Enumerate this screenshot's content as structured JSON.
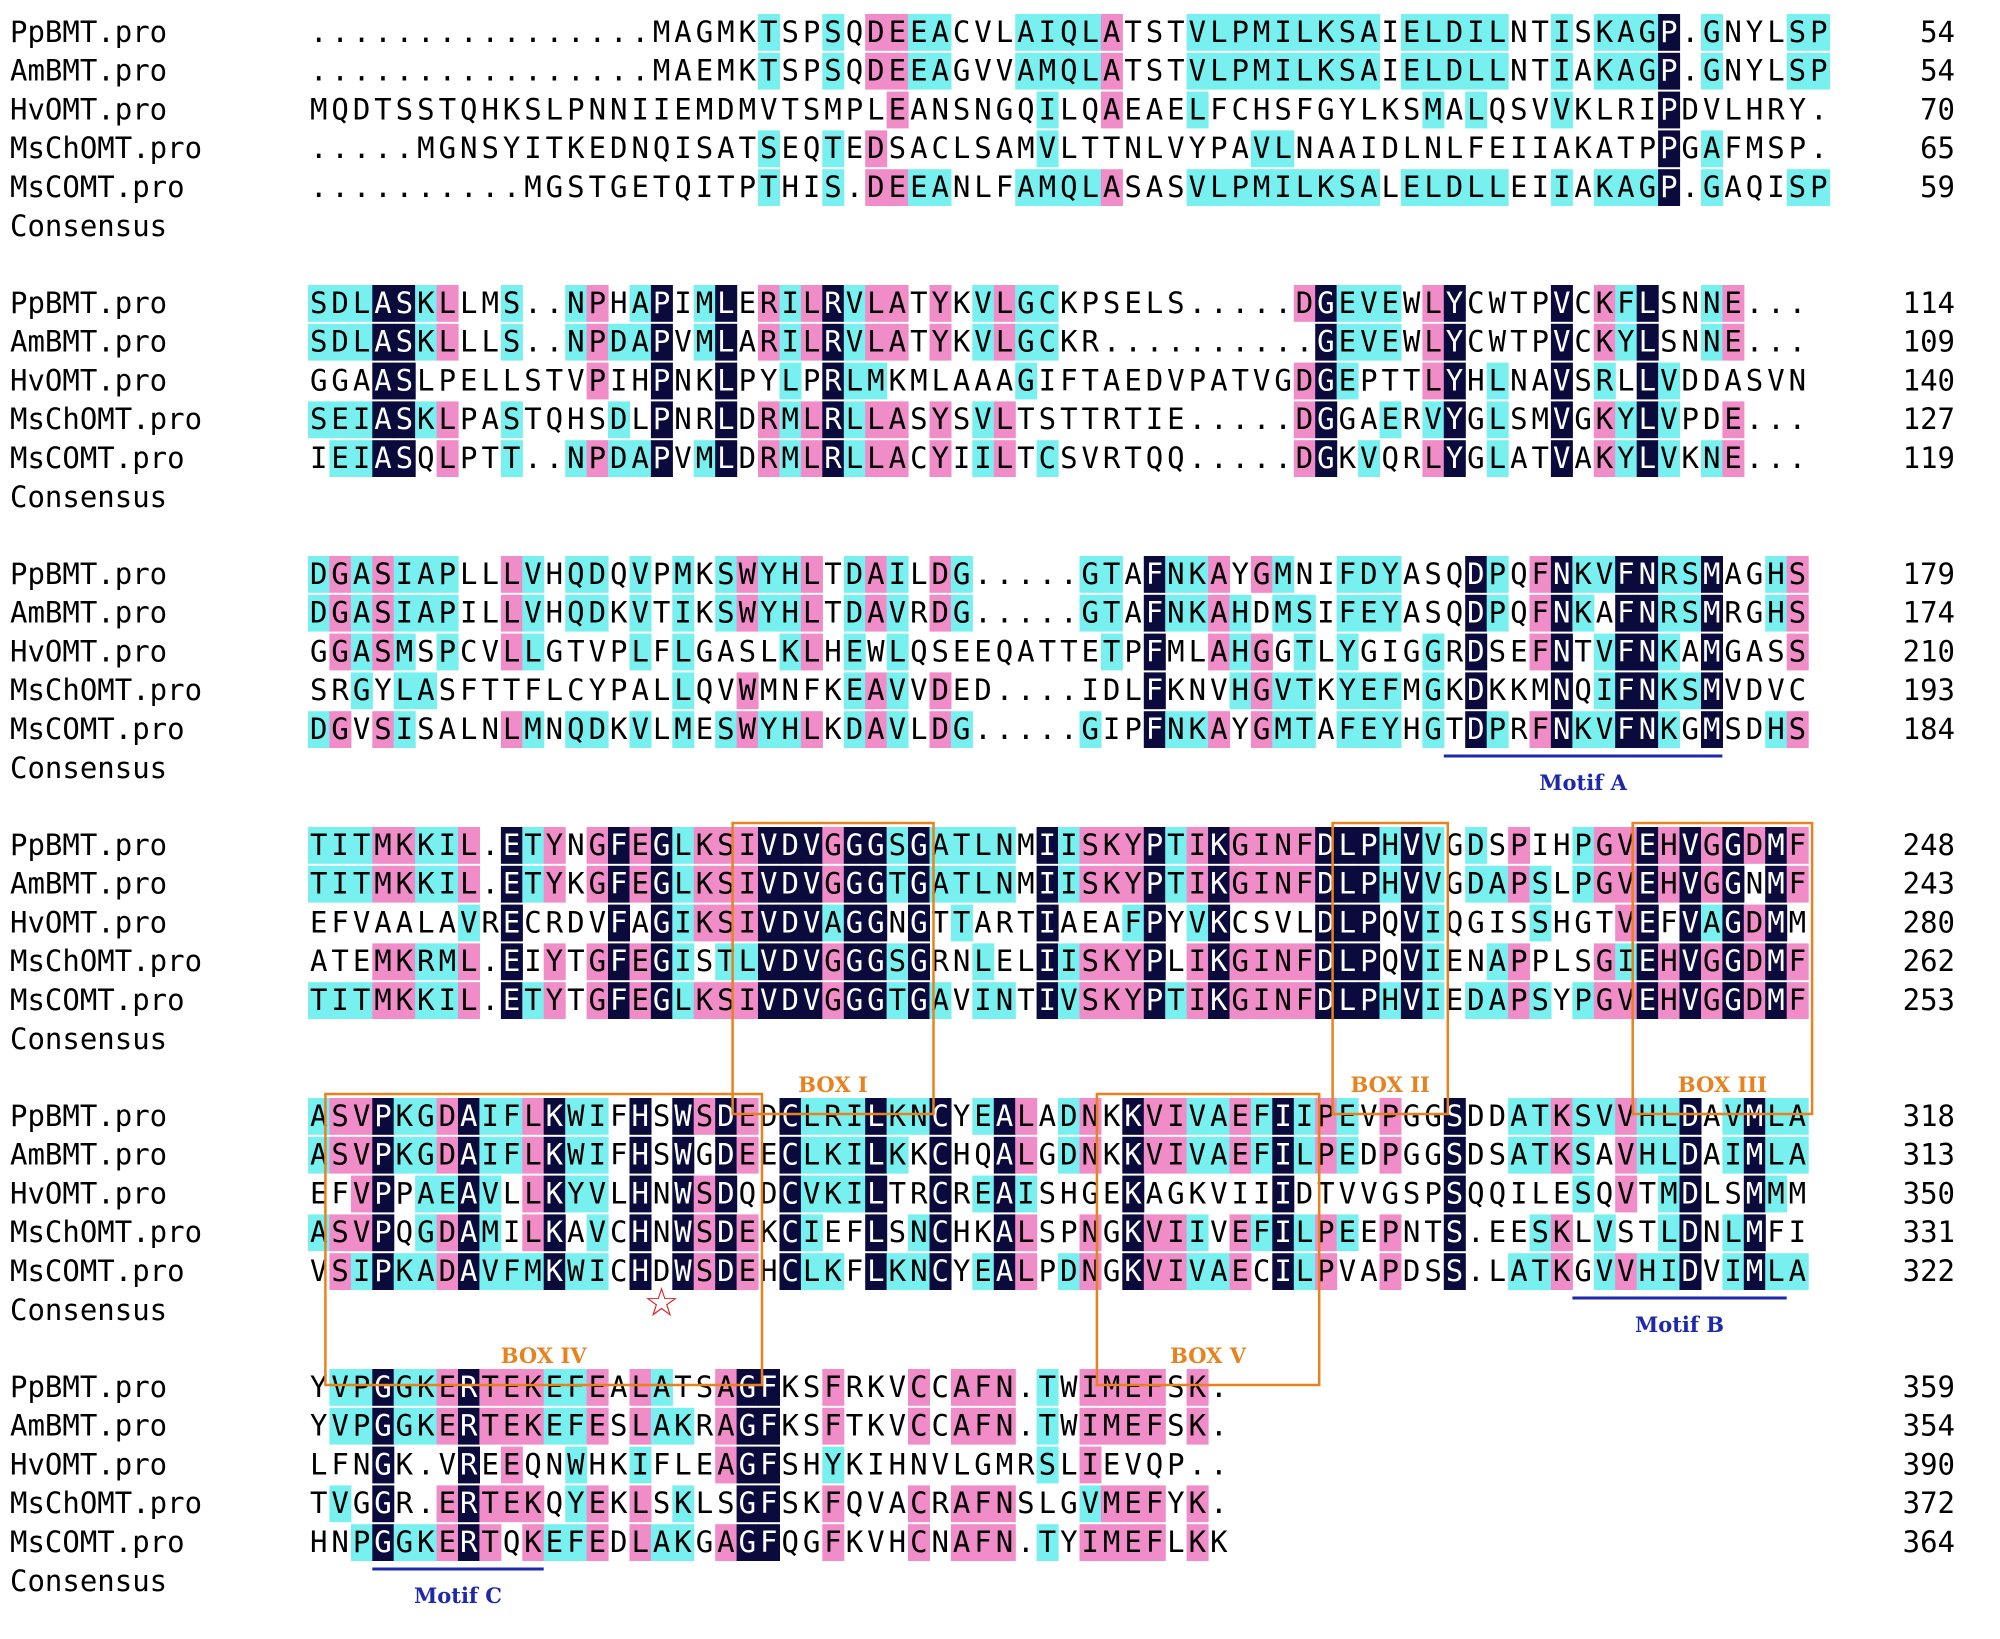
{
  "colors": {
    "identical_bg": "#0a0a3c",
    "identical_fg": "#ffffff",
    "high_bg": "#f08cc8",
    "medium_bg": "#78f0f0",
    "text": "#000000",
    "box": "#e8821e",
    "motif_line": "#1e28aa",
    "motif_text": "#1e28aa",
    "star": "#e01e1e"
  },
  "consensus_label": "Consensus",
  "blocks": [
    {
      "rows": [
        {
          "name": "PpBMT.pro",
          "seq": "................MAGMKTSPSQDEEACVLAIQLATSTVLPMILKSAIELDILNTISKAGP.GNYLSP",
          "num": "54"
        },
        {
          "name": "AmBMT.pro",
          "seq": "................MAEMKTSPSQDEEAGVVAMQLATSTVLPMILKSAIELDLLNTIAKAGP.GNYLSP",
          "num": "54"
        },
        {
          "name": "HvOMT.pro",
          "seq": "MQDTSSTQHKSLPNNIIEMDMVTSMPLEANSNGQILQAEAELFCHSFGYLKSMALQSVVKLRIPDVLHRY",
          "num": "70"
        },
        {
          "name": "MsChOMT.pro",
          "seq": ".....MGNSYITKEDNQISATSEQTEDSACLSAMVLTTNLVYPAVLNAAIDLNLFEIIAKATPPGAFMSP",
          "num": "65"
        },
        {
          "name": "MsCOMT.pro",
          "seq": "..........MGSTGETQITPTHIS.DEEANLFAMQLASASVLPMILKSALELDLLEIIAKAGP.GAQISP",
          "num": "59"
        }
      ]
    },
    {
      "rows": [
        {
          "name": "PpBMT.pro",
          "seq": "SDLASKLLMS..NPHAPIMLERILRVLATYKVLGCKPSELS.....DGEVEWLYCWTPVCKFLSNNE...",
          "num": "114"
        },
        {
          "name": "AmBMT.pro",
          "seq": "SDLASKLLLS..NPDAPVMLARILRVLATYKVLGCKR..........GEVEWLYCWTPVCKYLSNNE...",
          "num": "109"
        },
        {
          "name": "HvOMT.pro",
          "seq": "GGAASLPELLSTVPIHPNKLPYLPRLMKMLAAAGIFTAEDVPATVGDGEPTTLYHLNAVSRLLVDDASVN",
          "num": "140"
        },
        {
          "name": "MsChOMT.pro",
          "seq": "SEIASKLPASTQHSDLPNRLDRMLRLLASYSVLTSTTRTIE.....DGGAERVYGLSMVGKYLVPDE...",
          "num": "127"
        },
        {
          "name": "MsCOMT.pro",
          "seq": "IEIASQLPTT..NPDAPVMLDRMLRLLACYIILTCSVRTQQ.....DGKVQRLYGLATVAKYLVKNE...",
          "num": "119"
        }
      ]
    },
    {
      "rows": [
        {
          "name": "PpBMT.pro",
          "seq": "DGASIAPLLLVHQDQVPMKSWYHLTDAILDG.....GTAFNKAYGMNIFDYASQDPQFNKVFNRSMAGHS",
          "num": "179"
        },
        {
          "name": "AmBMT.pro",
          "seq": "DGASIAPILLVHQDKVTIKSWYHLTDAVRDG.....GTAFNKAHDMSIFEYASQDPQFNKAFNRSMRGHS",
          "num": "174"
        },
        {
          "name": "HvOMT.pro",
          "seq": "GGASMSPCVLLGTVPLFLGASLKLHEWLQSEEQATTETPFMLAHGGTLYGIGGRDSEFNTVFNKAMGASS",
          "num": "210"
        },
        {
          "name": "MsChOMT.pro",
          "seq": "SRGYLASFTTFLCYPALLQVWMNFKEAVVDED....IDLFKNVHGVTKYEFMGKDKKMNQIFNKSMVDVC",
          "num": "193"
        },
        {
          "name": "MsCOMT.pro",
          "seq": "DGVSISALNLMNQDKVLMESWYHLKDAVLDG.....GIPFNKAYGMTAFEYHGTDPRFNKVFNKGMSDHS",
          "num": "184"
        }
      ]
    },
    {
      "rows": [
        {
          "name": "PpBMT.pro",
          "seq": "TITMKKIL.ETYNGFEGLKSIVDVGGGSGATLNMIISKYPTIKGINFDLPHVVGDSPIHPGVEHVGGDMF",
          "num": "248"
        },
        {
          "name": "AmBMT.pro",
          "seq": "TITMKKIL.ETYKGFEGLKSIVDVGGGTGATLNMIISKYPTIKGINFDLPHVVGDAPSLPGVEHVGGNMF",
          "num": "243"
        },
        {
          "name": "HvOMT.pro",
          "seq": "EFVAALAVRECRDVFAGIKSIVDVAGGNGTTARTIAEAFPYVKCSVLDLPQVIQGISSHGTVEFVAGDMM",
          "num": "280"
        },
        {
          "name": "MsChOMT.pro",
          "seq": "ATEMKRML.EIYTGFEGISTLVDVGGGSGRNLELIISKYPLIKGINFDLPQVIENAPPLSGIEHVGGDMF",
          "num": "262"
        },
        {
          "name": "MsCOMT.pro",
          "seq": "TITMKKIL.ETYTGFEGLKSIVDVGGGTGAVINTIVSKYPTIKGINFDLPHVIEDAPSYPGVEHVGGDMF",
          "num": "253"
        }
      ]
    },
    {
      "rows": [
        {
          "name": "PpBMT.pro",
          "seq": "ASVPKGDAIFLKWIFHSWSDEDCLRILKNCYEALADNKKVIVAEFIIPEVPGGSDDATKSVVHLDAVMLA",
          "num": "318"
        },
        {
          "name": "AmBMT.pro",
          "seq": "ASVPKGDAIFLKWIFHSWGDEECLKILKKCHQALGDNKKVIVAEFILPEDPGGSDSATKSAVHLDAIMLA",
          "num": "313"
        },
        {
          "name": "HvOMT.pro",
          "seq": "EFVPPAEAVLLKYVLHNWSDQDCVKILTRCREAISHGEKAGKVIIIDTVVGSPSQQILESQVTMDLSMMM",
          "num": "350"
        },
        {
          "name": "MsChOMT.pro",
          "seq": "ASVPQGDAMILKAVCHNWSDEKCIEFLSNCHKALSPNGKVIIVEFILPEEPNTS.EESKLVSTLDNLMFI",
          "num": "331"
        },
        {
          "name": "MsCOMT.pro",
          "seq": "VSIPKADAVFMKWICHDWSDEHCLKFLKNCYEALPDNGKVIVAECILPVAPDSS.LATKGVVHIDVIMLA",
          "num": "322"
        }
      ]
    },
    {
      "rows": [
        {
          "name": "PpBMT.pro",
          "seq": "YVPGGKERTEKEFEALATSAGFKSFRKVCCAFN.TWIMEFSK.",
          "num": "359"
        },
        {
          "name": "AmBMT.pro",
          "seq": "YVPGGKERTEKEFESLAKRAGFKSFTKVCCAFN.TWIMEFSK.",
          "num": "354"
        },
        {
          "name": "HvOMT.pro",
          "seq": "LFNGK.VREEQNWHKIFLEAGFSHYKIHNVLGMRSLIEVQP..",
          "num": "390"
        },
        {
          "name": "MsChOMT.pro",
          "seq": "TVGGR.ERTEKQYEKLSKLSGFSKFQVACRAFNSLGVMEFYK.",
          "num": "372"
        },
        {
          "name": "MsCOMT.pro",
          "seq": "HNPGGKERTQKEFEDLAKGAGFQGFKVHCNAFN.TYIMEFLKK",
          "num": "364"
        }
      ]
    }
  ],
  "annotations": {
    "boxes": [
      {
        "label": "BOX I",
        "block": 3,
        "col_start": 20,
        "col_end": 28
      },
      {
        "label": "BOX II",
        "block": 3,
        "col_start": 48,
        "col_end": 52
      },
      {
        "label": "BOX III",
        "block": 3,
        "col_start": 62,
        "col_end": 69
      },
      {
        "label": "BOX IV",
        "block": 4,
        "col_start": 1,
        "col_end": 20
      },
      {
        "label": "BOX V",
        "block": 4,
        "col_start": 37,
        "col_end": 46
      }
    ],
    "motifs": [
      {
        "label": "Motif A",
        "block": 2,
        "col_start": 53,
        "col_end": 65
      },
      {
        "label": "Motif B",
        "block": 4,
        "col_start": 59,
        "col_end": 68
      },
      {
        "label": "Motif C",
        "block": 5,
        "col_start": 3,
        "col_end": 10
      }
    ],
    "star": {
      "block": 4,
      "col": 16,
      "glyph": "☆"
    }
  }
}
